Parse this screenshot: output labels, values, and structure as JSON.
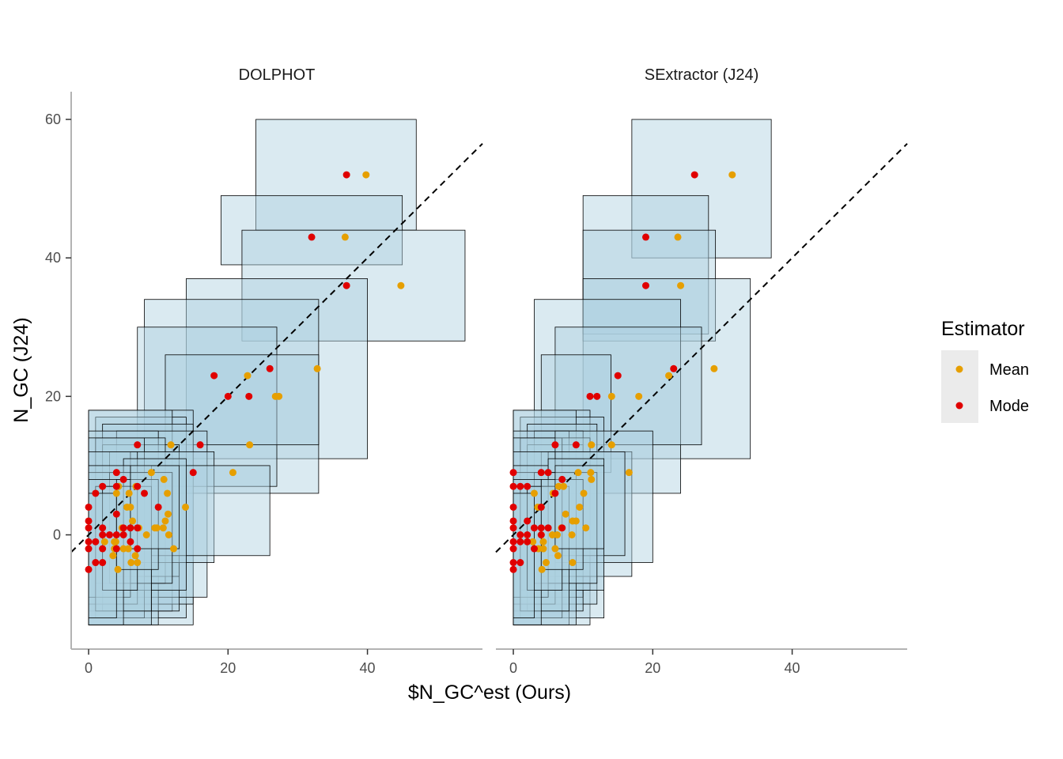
{
  "chart_data": {
    "type": "scatter",
    "xlabel": "$N_GC^est (Ours)",
    "ylabel": "N_GC (J24)",
    "xlim": [
      -2.5,
      56.5
    ],
    "ylim": [
      -16.5,
      64
    ],
    "x_ticks": [
      0,
      20,
      40
    ],
    "y_ticks": [
      0,
      20,
      40,
      60
    ],
    "grid": false,
    "reference_line": "y = x (dashed)",
    "box_fill": "#aed0df",
    "box_stroke": "#000000",
    "legend": {
      "title": "Estimator",
      "placement": "right",
      "entries": [
        {
          "label": "Mean",
          "color": "#E69F00"
        },
        {
          "label": "Mode",
          "color": "#E00000"
        }
      ]
    },
    "panels": [
      {
        "name": "DOLPHOT",
        "boxes": [
          [
            24,
            47,
            44,
            60
          ],
          [
            19,
            45,
            39,
            49
          ],
          [
            22,
            54,
            28,
            44
          ],
          [
            14,
            40,
            11,
            37
          ],
          [
            8,
            33,
            6,
            34
          ],
          [
            7,
            27,
            7,
            30
          ],
          [
            11,
            33,
            13,
            26
          ],
          [
            0,
            15,
            -13,
            18
          ],
          [
            1,
            14,
            -12,
            17
          ],
          [
            0,
            12,
            -11,
            18
          ],
          [
            2,
            15,
            -10,
            16
          ],
          [
            4,
            17,
            -9,
            15
          ],
          [
            0,
            10,
            -13,
            15
          ],
          [
            2,
            13,
            -11,
            13
          ],
          [
            1,
            11,
            -7,
            14
          ],
          [
            3,
            13,
            -6,
            12
          ],
          [
            0,
            8,
            -12,
            14
          ],
          [
            6,
            18,
            -4,
            12
          ],
          [
            9,
            26,
            -3,
            10
          ],
          [
            0,
            7,
            -10,
            12
          ],
          [
            5,
            14,
            -8,
            11
          ],
          [
            0,
            9,
            -13,
            9
          ],
          [
            3,
            12,
            -7,
            9
          ],
          [
            0,
            6,
            -9,
            10
          ],
          [
            1,
            9,
            -11,
            7
          ],
          [
            0,
            5,
            -13,
            8
          ],
          [
            2,
            7,
            -8,
            7
          ],
          [
            0,
            4,
            -12,
            6
          ],
          [
            4,
            10,
            -5,
            8
          ],
          [
            6,
            13,
            -2,
            10
          ]
        ],
        "mean": [
          [
            39.8,
            52
          ],
          [
            36.8,
            43
          ],
          [
            44.8,
            36
          ],
          [
            32.8,
            24
          ],
          [
            22.8,
            23
          ],
          [
            27.3,
            20
          ],
          [
            26.8,
            20
          ],
          [
            23.1,
            13
          ],
          [
            20.7,
            9
          ],
          [
            11.8,
            13
          ],
          [
            10.8,
            8
          ],
          [
            11.3,
            6
          ],
          [
            13.9,
            4
          ],
          [
            11.4,
            3
          ],
          [
            11,
            2
          ],
          [
            10.7,
            1
          ],
          [
            9.5,
            1
          ],
          [
            9.8,
            1
          ],
          [
            8.3,
            0
          ],
          [
            12.2,
            -2
          ],
          [
            9,
            9
          ],
          [
            11.5,
            0
          ],
          [
            6.8,
            7
          ],
          [
            4.3,
            7
          ],
          [
            5.8,
            6
          ],
          [
            4,
            6
          ],
          [
            6,
            4
          ],
          [
            5.5,
            4
          ],
          [
            6.3,
            2
          ],
          [
            7.2,
            1
          ],
          [
            4.8,
            1
          ],
          [
            3.7,
            -1
          ],
          [
            2.3,
            -1
          ],
          [
            3.7,
            -2
          ],
          [
            3.9,
            -1
          ],
          [
            5,
            -2
          ],
          [
            5.7,
            -2
          ],
          [
            6.7,
            -3
          ],
          [
            3.5,
            -3
          ],
          [
            6.1,
            -4
          ],
          [
            7,
            -4
          ],
          [
            4.2,
            -5
          ]
        ],
        "mode": [
          [
            37,
            52
          ],
          [
            32,
            43
          ],
          [
            37,
            36
          ],
          [
            18,
            23
          ],
          [
            26,
            24
          ],
          [
            20,
            20
          ],
          [
            23,
            20
          ],
          [
            16,
            13
          ],
          [
            15,
            9
          ],
          [
            7,
            13
          ],
          [
            10,
            4
          ],
          [
            7,
            7
          ],
          [
            4,
            9
          ],
          [
            5,
            8
          ],
          [
            8,
            6
          ],
          [
            1,
            6
          ],
          [
            2,
            7
          ],
          [
            4,
            7
          ],
          [
            0,
            4
          ],
          [
            4,
            3
          ],
          [
            0,
            2
          ],
          [
            0,
            1
          ],
          [
            5,
            1
          ],
          [
            2,
            1
          ],
          [
            6,
            1
          ],
          [
            7,
            1
          ],
          [
            2,
            0
          ],
          [
            3,
            0
          ],
          [
            4,
            0
          ],
          [
            5,
            0
          ],
          [
            6,
            -1
          ],
          [
            0,
            -1
          ],
          [
            1,
            -1
          ],
          [
            2,
            -2
          ],
          [
            4,
            -2
          ],
          [
            7,
            -2
          ],
          [
            0,
            -2
          ],
          [
            1,
            -4
          ],
          [
            2,
            -4
          ],
          [
            0,
            -5
          ]
        ]
      },
      {
        "name": "SExtractor (J24)",
        "boxes": [
          [
            17,
            37,
            40,
            60
          ],
          [
            10,
            28,
            29,
            49
          ],
          [
            10,
            29,
            28,
            44
          ],
          [
            10,
            34,
            11,
            37
          ],
          [
            3,
            24,
            6,
            34
          ],
          [
            6,
            27,
            13,
            30
          ],
          [
            4,
            14,
            9,
            26
          ],
          [
            0,
            11,
            -13,
            18
          ],
          [
            1,
            13,
            -12,
            17
          ],
          [
            0,
            9,
            -11,
            18
          ],
          [
            2,
            12,
            -10,
            16
          ],
          [
            3,
            10,
            -9,
            15
          ],
          [
            0,
            8,
            -13,
            15
          ],
          [
            2,
            10,
            -11,
            13
          ],
          [
            1,
            11,
            -8,
            14
          ],
          [
            4,
            17,
            -6,
            12
          ],
          [
            0,
            7,
            -12,
            14
          ],
          [
            6,
            20,
            -4,
            15
          ],
          [
            5,
            16,
            -3,
            12
          ],
          [
            0,
            6,
            -10,
            12
          ],
          [
            5,
            13,
            -8,
            11
          ],
          [
            0,
            9,
            -13,
            9
          ],
          [
            3,
            12,
            -7,
            9
          ],
          [
            0,
            5,
            -9,
            10
          ],
          [
            1,
            8,
            -11,
            7
          ],
          [
            0,
            4,
            -13,
            8
          ],
          [
            2,
            7,
            -8,
            7
          ],
          [
            0,
            3,
            -12,
            6
          ],
          [
            4,
            10,
            -5,
            8
          ],
          [
            6,
            13,
            -2,
            10
          ]
        ],
        "mean": [
          [
            31.4,
            52
          ],
          [
            23.6,
            43
          ],
          [
            24,
            36
          ],
          [
            28.8,
            24
          ],
          [
            22.3,
            23
          ],
          [
            18,
            20
          ],
          [
            14.1,
            20
          ],
          [
            14.1,
            13
          ],
          [
            16.6,
            9
          ],
          [
            11.2,
            13
          ],
          [
            11.1,
            9
          ],
          [
            11.2,
            8
          ],
          [
            10.1,
            6
          ],
          [
            9.5,
            4
          ],
          [
            10.4,
            1
          ],
          [
            9,
            2
          ],
          [
            8.4,
            0
          ],
          [
            9.3,
            9
          ],
          [
            6.5,
            7
          ],
          [
            7.2,
            7
          ],
          [
            5.7,
            6
          ],
          [
            3,
            6
          ],
          [
            3.5,
            4
          ],
          [
            4,
            4
          ],
          [
            7.5,
            3
          ],
          [
            8.5,
            2
          ],
          [
            6.9,
            1
          ],
          [
            5.6,
            0
          ],
          [
            6.3,
            0
          ],
          [
            4,
            0
          ],
          [
            4.3,
            -1
          ],
          [
            2.8,
            -1
          ],
          [
            2,
            -1
          ],
          [
            3.6,
            -2
          ],
          [
            4.3,
            -2
          ],
          [
            6,
            -2
          ],
          [
            6.4,
            -3
          ],
          [
            4.7,
            -4
          ],
          [
            8.5,
            -4
          ],
          [
            4.1,
            -5
          ]
        ],
        "mode": [
          [
            26,
            52
          ],
          [
            19,
            43
          ],
          [
            19,
            36
          ],
          [
            15,
            23
          ],
          [
            23,
            24
          ],
          [
            11,
            20
          ],
          [
            12,
            20
          ],
          [
            6,
            13
          ],
          [
            9,
            13
          ],
          [
            4,
            9
          ],
          [
            7,
            8
          ],
          [
            5,
            9
          ],
          [
            6,
            6
          ],
          [
            0,
            9
          ],
          [
            0,
            7
          ],
          [
            1,
            7
          ],
          [
            2,
            7
          ],
          [
            0,
            4
          ],
          [
            4,
            4
          ],
          [
            0,
            2
          ],
          [
            3,
            1
          ],
          [
            2,
            2
          ],
          [
            0,
            1
          ],
          [
            4,
            1
          ],
          [
            5,
            1
          ],
          [
            7,
            1
          ],
          [
            1,
            0
          ],
          [
            2,
            0
          ],
          [
            4,
            0
          ],
          [
            0,
            -1
          ],
          [
            1,
            -1
          ],
          [
            2,
            -1
          ],
          [
            3,
            -2
          ],
          [
            0,
            -2
          ],
          [
            1,
            -4
          ],
          [
            0,
            -4
          ],
          [
            0,
            -5
          ]
        ]
      }
    ]
  }
}
